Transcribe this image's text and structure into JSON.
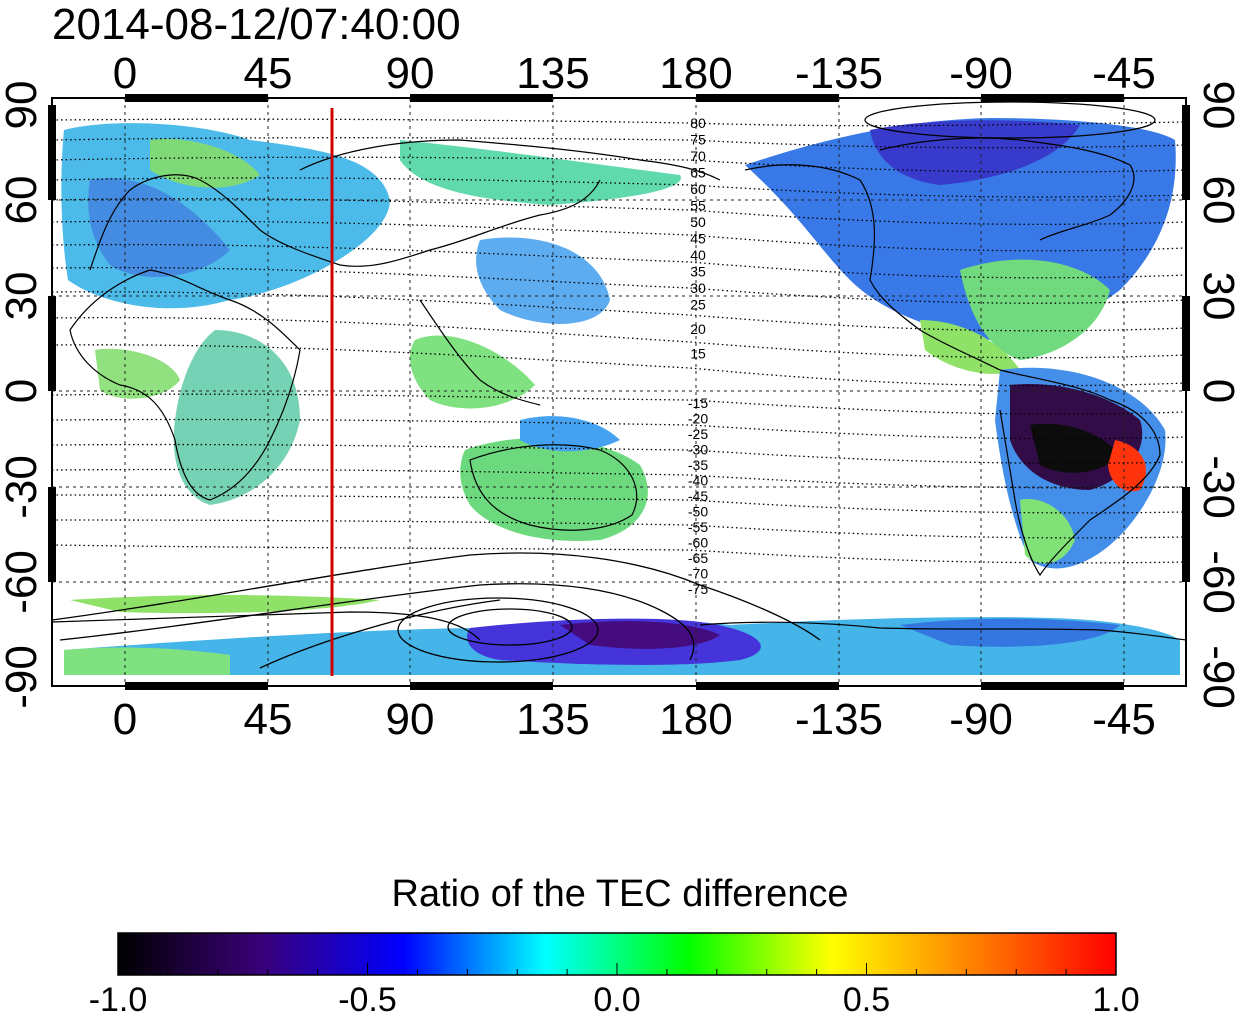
{
  "timestamp": "2014-08-12/07:40:00",
  "axes": {
    "top_lon_labels": [
      "0",
      "45",
      "90",
      "135",
      "180",
      "-135",
      "-90",
      "-45"
    ],
    "bottom_lon_labels": [
      "0",
      "45",
      "90",
      "135",
      "180",
      "-135",
      "-90",
      "-45"
    ],
    "left_lat_labels": [
      "90",
      "60",
      "30",
      "0",
      "-30",
      "-60",
      "-90"
    ],
    "right_lat_labels": [
      "90",
      "60",
      "30",
      "0",
      "-30",
      "-60",
      "-90"
    ]
  },
  "map_overlay": {
    "marker_line_longitude_deg": 65,
    "marker_line_color": "#d00000",
    "contour_labels_north": [
      "80",
      "75",
      "70",
      "65",
      "60",
      "55",
      "50",
      "45",
      "40",
      "35",
      "30",
      "25",
      "20",
      "15"
    ],
    "contour_labels_south": [
      "-15",
      "-20",
      "-25",
      "-30",
      "-35",
      "-40",
      "-45",
      "-50",
      "-55",
      "-60",
      "-65",
      "-70",
      "-75"
    ]
  },
  "colorbar": {
    "title": "Ratio of the TEC difference",
    "min": -1.0,
    "max": 1.0,
    "tick_labels": [
      "-1.0",
      "-0.5",
      "0.0",
      "0.5",
      "1.0"
    ],
    "colors": [
      "#000000",
      "#3a0078",
      "#0000ff",
      "#00ffff",
      "#00ff00",
      "#ffff00",
      "#ff8000",
      "#ff0000"
    ]
  }
}
